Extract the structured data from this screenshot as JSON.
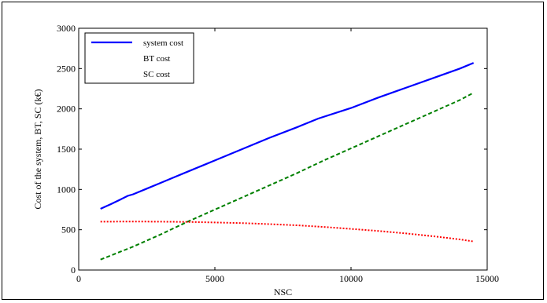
{
  "chart_data": {
    "type": "line",
    "xlabel": "NSC",
    "ylabel": "Cost of the system, BT, SC (k€)",
    "xlim": [
      0,
      15000
    ],
    "ylim": [
      0,
      3000
    ],
    "xticks": [
      0,
      5000,
      10000,
      15000
    ],
    "yticks": [
      0,
      500,
      1000,
      1500,
      2000,
      2500,
      3000
    ],
    "grid": false,
    "legend_position": "top-left",
    "series": [
      {
        "name": "system cost",
        "color": "#0000ff",
        "style": "solid",
        "x": [
          800,
          1200,
          1500,
          1800,
          2000,
          2500,
          3000,
          3500,
          4000,
          5000,
          6000,
          7000,
          8000,
          8800,
          10000,
          11000,
          12000,
          13000,
          14000,
          14500
        ],
        "y": [
          760,
          820,
          870,
          920,
          940,
          1010,
          1080,
          1150,
          1220,
          1360,
          1500,
          1640,
          1770,
          1880,
          2010,
          2140,
          2260,
          2380,
          2500,
          2570
        ]
      },
      {
        "name": "BT cost",
        "color": "#008000",
        "style": "dashed",
        "x": [
          800,
          2000,
          3000,
          4000,
          5000,
          6000,
          7000,
          8000,
          9000,
          10000,
          11000,
          12000,
          13000,
          14000,
          14500
        ],
        "y": [
          130,
          290,
          440,
          600,
          750,
          900,
          1050,
          1200,
          1360,
          1510,
          1660,
          1810,
          1960,
          2110,
          2200
        ]
      },
      {
        "name": "SC cost",
        "color": "#ff0000",
        "style": "dotted",
        "x": [
          800,
          2000,
          3000,
          4000,
          5000,
          6000,
          7000,
          8000,
          9000,
          10000,
          11000,
          12000,
          13000,
          14000,
          14500
        ],
        "y": [
          600,
          602,
          600,
          597,
          590,
          582,
          570,
          555,
          535,
          510,
          485,
          455,
          420,
          380,
          355
        ]
      }
    ]
  }
}
